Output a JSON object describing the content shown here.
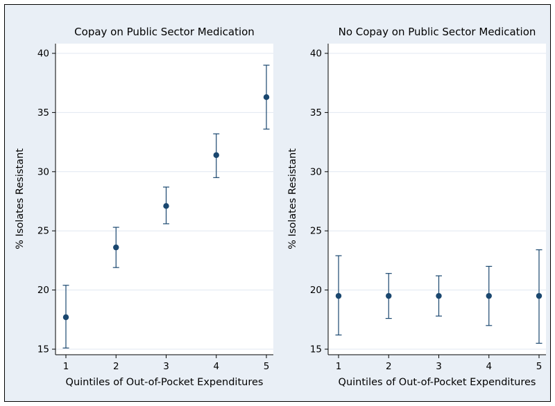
{
  "colors": {
    "background": "#e9eff6",
    "plot_background": "#ffffff",
    "point": "#1a476f",
    "ci": "#1a476f",
    "grid": "#e0e7f1",
    "axis": "#000000"
  },
  "chart_data": [
    {
      "type": "scatter",
      "title": "Copay on Public Sector Medication",
      "xlabel": "Quintiles of Out-of-Pocket Expenditures",
      "ylabel": "% Isolates Resistant",
      "x": [
        1,
        2,
        3,
        4,
        5
      ],
      "y": [
        17.7,
        23.6,
        27.1,
        31.4,
        36.3
      ],
      "ci_low": [
        15.1,
        21.9,
        25.6,
        29.5,
        33.6
      ],
      "ci_high": [
        20.4,
        25.3,
        28.7,
        33.2,
        39.0
      ],
      "ylim": [
        15,
        40
      ],
      "yticks": [
        15,
        20,
        25,
        30,
        35,
        40
      ],
      "xticks": [
        1,
        2,
        3,
        4,
        5
      ],
      "grid": true,
      "legend": "none"
    },
    {
      "type": "scatter",
      "title": "No Copay on Public Sector Medication",
      "xlabel": "Quintiles of Out-of-Pocket Expenditures",
      "ylabel": "% Isolates Resistant",
      "x": [
        1,
        2,
        3,
        4,
        5
      ],
      "y": [
        19.5,
        19.5,
        19.5,
        19.5,
        19.5
      ],
      "ci_low": [
        16.2,
        17.6,
        17.8,
        17.0,
        15.5
      ],
      "ci_high": [
        22.9,
        21.4,
        21.2,
        22.0,
        23.4
      ],
      "ylim": [
        15,
        40
      ],
      "yticks": [
        15,
        20,
        25,
        30,
        35,
        40
      ],
      "xticks": [
        1,
        2,
        3,
        4,
        5
      ],
      "grid": true,
      "legend": "none"
    }
  ]
}
